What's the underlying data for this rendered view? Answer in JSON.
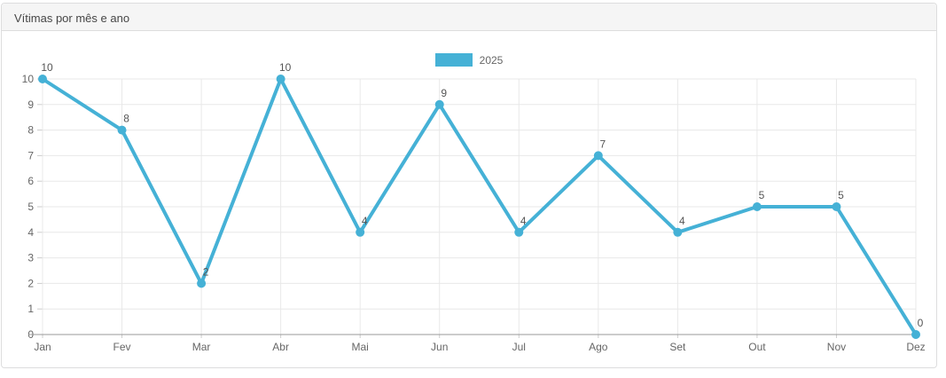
{
  "card": {
    "title": "Vítimas por mês e ano"
  },
  "legend": {
    "items": [
      {
        "label": "2025",
        "color": "#45b1d6"
      }
    ]
  },
  "chart_data": {
    "type": "line",
    "title": "Vítimas por mês e ano",
    "categories": [
      "Jan",
      "Fev",
      "Mar",
      "Abr",
      "Mai",
      "Jun",
      "Jul",
      "Ago",
      "Set",
      "Out",
      "Nov",
      "Dez"
    ],
    "series": [
      {
        "name": "2025",
        "color": "#45b1d6",
        "values": [
          10,
          8,
          2,
          10,
          4,
          9,
          4,
          7,
          4,
          5,
          5,
          0
        ]
      }
    ],
    "xlabel": "",
    "ylabel": "",
    "ylim": [
      0,
      10
    ],
    "ytick_step": 1,
    "grid": true,
    "legend_position": "top-center",
    "point_labels": true
  },
  "colors": {
    "grid": "#e8e8e8",
    "axis": "#999999",
    "tick": "#cccccc",
    "tick_text": "#666666",
    "point_label": "#555555"
  }
}
